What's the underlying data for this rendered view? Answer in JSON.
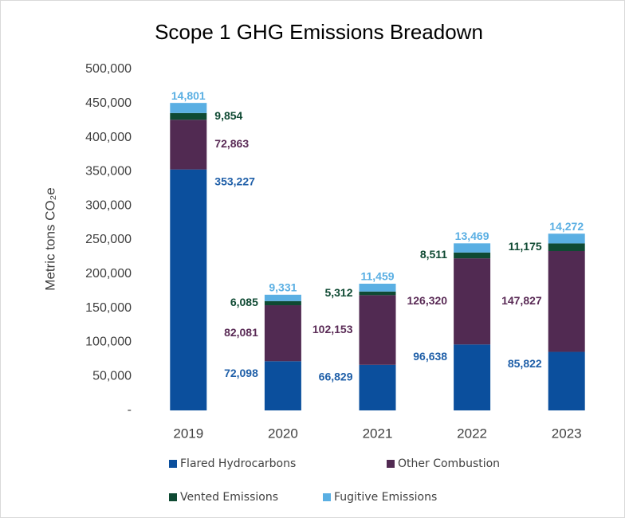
{
  "chart_data": {
    "type": "stacked_bar",
    "title": "Scope 1 GHG Emissions Breadown",
    "ylabel": "Metric tons CO₂e",
    "categories": [
      "2019",
      "2020",
      "2021",
      "2022",
      "2023"
    ],
    "series": [
      {
        "name": "Flared Hydrocarbons",
        "color": "#0b4f9d",
        "label_color": "#1f5fa8",
        "values": [
          353227,
          72098,
          66829,
          96638,
          85822
        ],
        "value_labels": [
          "353,227",
          "72,098",
          "66,829",
          "96,638",
          "85,822"
        ]
      },
      {
        "name": "Other Combustion",
        "color": "#512a52",
        "label_color": "#5a2b56",
        "values": [
          72863,
          82081,
          102153,
          126320,
          147827
        ],
        "value_labels": [
          "72,863",
          "82,081",
          "102,153",
          "126,320",
          "147,827"
        ]
      },
      {
        "name": "Vented Emissions",
        "color": "#0f4a33",
        "label_color": "#0f4a33",
        "values": [
          9854,
          6085,
          5312,
          8511,
          11175
        ],
        "value_labels": [
          "9,854",
          "6,085",
          "5,312",
          "8,511",
          "11,175"
        ]
      },
      {
        "name": "Fugitive Emissions",
        "color": "#5aafe3",
        "label_color": "#5aafe3",
        "values": [
          14801,
          9331,
          11459,
          13469,
          14272
        ],
        "value_labels": [
          "14,801",
          "9,331",
          "11,459",
          "13,469",
          "14,272"
        ]
      }
    ],
    "ylim": [
      0,
      500000
    ],
    "yticks": [
      {
        "value": 0,
        "label": "-"
      },
      {
        "value": 50000,
        "label": "50,000"
      },
      {
        "value": 100000,
        "label": "100,000"
      },
      {
        "value": 150000,
        "label": "150,000"
      },
      {
        "value": 200000,
        "label": "200,000"
      },
      {
        "value": 250000,
        "label": "250,000"
      },
      {
        "value": 300000,
        "label": "300,000"
      },
      {
        "value": 350000,
        "label": "350,000"
      },
      {
        "value": 400000,
        "label": "400,000"
      },
      {
        "value": 450000,
        "label": "450,000"
      },
      {
        "value": 500000,
        "label": "500,000"
      }
    ]
  }
}
